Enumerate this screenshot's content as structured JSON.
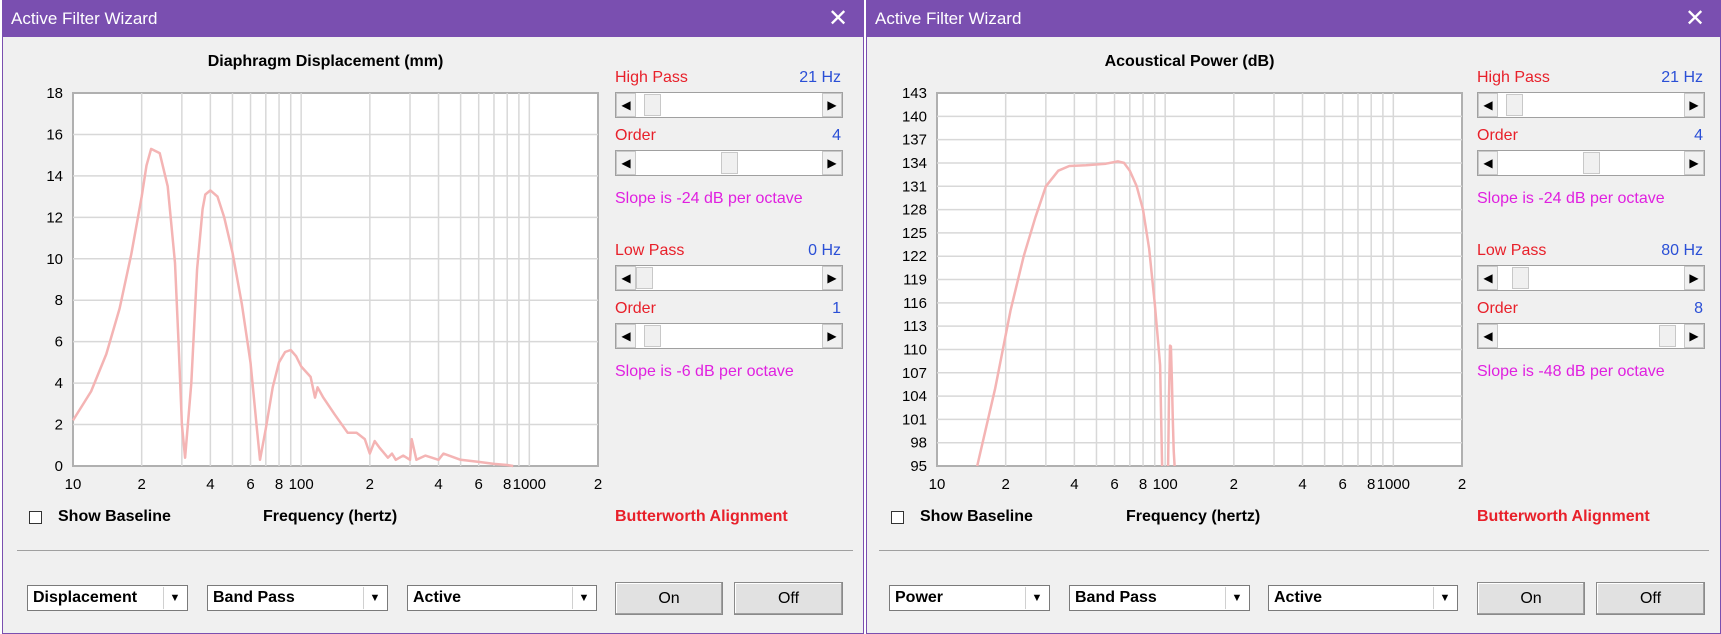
{
  "windows": [
    {
      "title": "Active Filter Wizard",
      "close_icon": "close-icon",
      "chart_data": {
        "type": "line",
        "title": "Diaphragm Displacement (mm)",
        "xlabel": "Frequency (hertz)",
        "ylabel": "",
        "xscale": "log",
        "xlim": [
          10,
          2000
        ],
        "ylim": [
          0,
          18
        ],
        "yticks": [
          "0",
          "2",
          "4",
          "6",
          "8",
          "10",
          "12",
          "14",
          "16",
          "18"
        ],
        "xtick_labels": [
          {
            "v": 10,
            "t": "10"
          },
          {
            "v": 20,
            "t": "2"
          },
          {
            "v": 40,
            "t": "4"
          },
          {
            "v": 60,
            "t": "6"
          },
          {
            "v": 80,
            "t": "8"
          },
          {
            "v": 100,
            "t": "100"
          },
          {
            "v": 200,
            "t": "2"
          },
          {
            "v": 400,
            "t": "4"
          },
          {
            "v": 600,
            "t": "6"
          },
          {
            "v": 800,
            "t": "8"
          },
          {
            "v": 1000,
            "t": "1000"
          },
          {
            "v": 2000,
            "t": "2"
          }
        ],
        "grid": true,
        "color": "#f4b4b4",
        "series": [
          {
            "x": [
              10,
              12,
              14,
              16,
              18,
              20,
              21,
              22,
              24,
              26,
              28,
              29,
              30,
              31,
              33,
              35,
              37,
              38,
              40,
              43,
              46,
              50,
              55,
              60,
              64,
              66,
              70,
              75,
              80,
              85,
              90,
              95,
              100,
              110,
              115,
              118,
              125,
              140,
              160,
              175,
              190,
              200,
              210,
              220,
              240,
              250,
              260,
              280,
              300,
              305,
              320,
              350,
              400,
              420,
              500,
              600,
              700,
              800,
              850
            ],
            "y": [
              2.2,
              3.6,
              5.4,
              7.6,
              10.2,
              13.0,
              14.5,
              15.3,
              15.1,
              13.5,
              9.8,
              6.0,
              2.0,
              0.4,
              4.0,
              9.5,
              12.4,
              13.1,
              13.3,
              13.0,
              12.0,
              10.3,
              7.8,
              5.0,
              1.8,
              0.3,
              1.8,
              3.8,
              5.0,
              5.5,
              5.6,
              5.3,
              4.8,
              4.3,
              3.3,
              3.8,
              3.3,
              2.5,
              1.6,
              1.6,
              1.3,
              0.6,
              1.2,
              0.9,
              0.4,
              0.6,
              0.3,
              0.5,
              0.3,
              1.3,
              0.3,
              0.5,
              0.3,
              0.6,
              0.3,
              0.2,
              0.1,
              0.05,
              0.0
            ]
          }
        ]
      },
      "controls": {
        "high_pass_label": "High Pass",
        "high_pass_value": "21 Hz",
        "high_pass_position": 0.05,
        "order1_label": "Order",
        "order1_value": "4",
        "order1_position": 0.5,
        "slope1_text": "Slope is -24 dB per octave",
        "low_pass_label": "Low Pass",
        "low_pass_value": "0 Hz",
        "low_pass_position": 0.0,
        "order2_label": "Order",
        "order2_value": "1",
        "order2_position": 0.05,
        "slope2_text": "Slope is -6 dB per octave"
      },
      "show_baseline_label": "Show Baseline",
      "show_baseline_checked": false,
      "alignment_text": "Butterworth Alignment",
      "combo1": "Displacement",
      "combo2": "Band Pass",
      "combo3": "Active",
      "on_label": "On",
      "off_label": "Off"
    },
    {
      "title": "Active Filter Wizard",
      "close_icon": "close-icon",
      "chart_data": {
        "type": "line",
        "title": "Acoustical Power (dB)",
        "xlabel": "Frequency (hertz)",
        "ylabel": "",
        "xscale": "log",
        "xlim": [
          10,
          2000
        ],
        "ylim": [
          95,
          143
        ],
        "yticks": [
          "95",
          "98",
          "101",
          "104",
          "107",
          "110",
          "113",
          "116",
          "119",
          "122",
          "125",
          "128",
          "131",
          "134",
          "137",
          "140",
          "143"
        ],
        "xtick_labels": [
          {
            "v": 10,
            "t": "10"
          },
          {
            "v": 20,
            "t": "2"
          },
          {
            "v": 40,
            "t": "4"
          },
          {
            "v": 60,
            "t": "6"
          },
          {
            "v": 80,
            "t": "8"
          },
          {
            "v": 100,
            "t": "100"
          },
          {
            "v": 200,
            "t": "2"
          },
          {
            "v": 400,
            "t": "4"
          },
          {
            "v": 600,
            "t": "6"
          },
          {
            "v": 800,
            "t": "8"
          },
          {
            "v": 1000,
            "t": "1000"
          },
          {
            "v": 2000,
            "t": "2"
          }
        ],
        "grid": true,
        "color": "#f4b4b4",
        "series": [
          {
            "x": [
              15,
              18,
              21,
              24,
              27,
              30,
              34,
              38,
              45,
              55,
              62,
              66,
              70,
              75,
              80,
              85,
              90,
              95,
              97
            ],
            "y": [
              95,
              105,
              115,
              122,
              127,
              131,
              133,
              133.6,
              133.7,
              133.9,
              134.2,
              134.0,
              133.0,
              131,
              128,
              123,
              116,
              108,
              95
            ]
          },
          {
            "x": [
              103,
              104,
              105,
              106,
              107,
              108,
              109,
              110
            ],
            "y": [
              95,
              104,
              110.5,
              110.4,
              106,
              101,
              97,
              95
            ]
          }
        ]
      },
      "controls": {
        "high_pass_label": "High Pass",
        "high_pass_value": "21 Hz",
        "high_pass_position": 0.05,
        "order1_label": "Order",
        "order1_value": "4",
        "order1_position": 0.5,
        "slope1_text": "Slope is -24 dB per octave",
        "low_pass_label": "Low Pass",
        "low_pass_value": "80 Hz",
        "low_pass_position": 0.08,
        "order2_label": "Order",
        "order2_value": "8",
        "order2_position": 0.95,
        "slope2_text": "Slope is -48 dB per octave"
      },
      "show_baseline_label": "Show Baseline",
      "show_baseline_checked": false,
      "alignment_text": "Butterworth Alignment",
      "combo1": "Power",
      "combo2": "Band Pass",
      "combo3": "Active",
      "on_label": "On",
      "off_label": "Off"
    }
  ]
}
